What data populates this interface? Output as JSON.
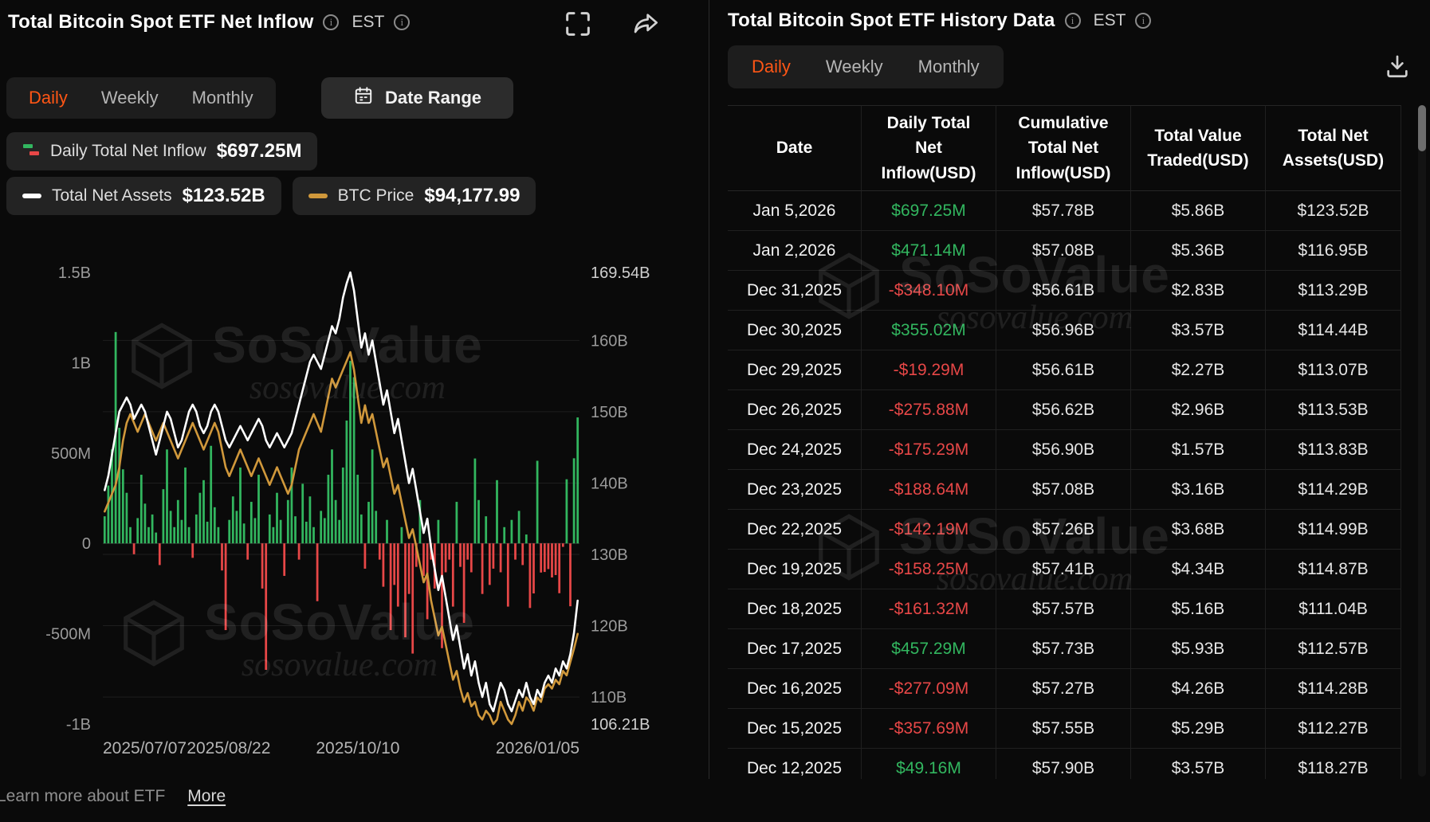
{
  "colors": {
    "accent_orange": "#ff5615",
    "green": "#32b65f",
    "red": "#e74747",
    "gold": "#d0983b",
    "white_line": "#ffffff"
  },
  "watermark": {
    "brand": "SoSoValue",
    "domain": "sosovalue.com"
  },
  "left_panel": {
    "title": "Total Bitcoin Spot ETF Net Inflow",
    "timezone": "EST",
    "tabs": [
      "Daily",
      "Weekly",
      "Monthly"
    ],
    "active_tab": "Daily",
    "date_range_label": "Date Range",
    "legend": [
      {
        "label": "Daily Total Net Inflow",
        "value": "$697.25M"
      },
      {
        "label": "Total Net Assets",
        "value": "$123.52B"
      },
      {
        "label": "BTC Price",
        "value": "$94,177.99"
      }
    ],
    "footer": {
      "learn_more": "Learn more about ETF",
      "more": "More"
    }
  },
  "right_panel": {
    "title": "Total Bitcoin Spot ETF History Data",
    "timezone": "EST",
    "tabs": [
      "Daily",
      "Weekly",
      "Monthly"
    ],
    "active_tab": "Daily",
    "table": {
      "columns": [
        "Date",
        "Daily Total Net Inflow(USD)",
        "Cumulative Total Net Inflow(USD)",
        "Total Value Traded(USD)",
        "Total Net Assets(USD)"
      ],
      "rows": [
        {
          "date": "Jan 5,2026",
          "daily_net_inflow": "$697.25M",
          "cumulative_net_inflow": "$57.78B",
          "value_traded": "$5.86B",
          "net_assets": "$123.52B"
        },
        {
          "date": "Jan 2,2026",
          "daily_net_inflow": "$471.14M",
          "cumulative_net_inflow": "$57.08B",
          "value_traded": "$5.36B",
          "net_assets": "$116.95B"
        },
        {
          "date": "Dec 31,2025",
          "daily_net_inflow": "-$348.10M",
          "cumulative_net_inflow": "$56.61B",
          "value_traded": "$2.83B",
          "net_assets": "$113.29B"
        },
        {
          "date": "Dec 30,2025",
          "daily_net_inflow": "$355.02M",
          "cumulative_net_inflow": "$56.96B",
          "value_traded": "$3.57B",
          "net_assets": "$114.44B"
        },
        {
          "date": "Dec 29,2025",
          "daily_net_inflow": "-$19.29M",
          "cumulative_net_inflow": "$56.61B",
          "value_traded": "$2.27B",
          "net_assets": "$113.07B"
        },
        {
          "date": "Dec 26,2025",
          "daily_net_inflow": "-$275.88M",
          "cumulative_net_inflow": "$56.62B",
          "value_traded": "$2.96B",
          "net_assets": "$113.53B"
        },
        {
          "date": "Dec 24,2025",
          "daily_net_inflow": "-$175.29M",
          "cumulative_net_inflow": "$56.90B",
          "value_traded": "$1.57B",
          "net_assets": "$113.83B"
        },
        {
          "date": "Dec 23,2025",
          "daily_net_inflow": "-$188.64M",
          "cumulative_net_inflow": "$57.08B",
          "value_traded": "$3.16B",
          "net_assets": "$114.29B"
        },
        {
          "date": "Dec 22,2025",
          "daily_net_inflow": "-$142.19M",
          "cumulative_net_inflow": "$57.26B",
          "value_traded": "$3.68B",
          "net_assets": "$114.99B"
        },
        {
          "date": "Dec 19,2025",
          "daily_net_inflow": "-$158.25M",
          "cumulative_net_inflow": "$57.41B",
          "value_traded": "$4.34B",
          "net_assets": "$114.87B"
        },
        {
          "date": "Dec 18,2025",
          "daily_net_inflow": "-$161.32M",
          "cumulative_net_inflow": "$57.57B",
          "value_traded": "$5.16B",
          "net_assets": "$111.04B"
        },
        {
          "date": "Dec 17,2025",
          "daily_net_inflow": "$457.29M",
          "cumulative_net_inflow": "$57.73B",
          "value_traded": "$5.93B",
          "net_assets": "$112.57B"
        },
        {
          "date": "Dec 16,2025",
          "daily_net_inflow": "-$277.09M",
          "cumulative_net_inflow": "$57.27B",
          "value_traded": "$4.26B",
          "net_assets": "$114.28B"
        },
        {
          "date": "Dec 15,2025",
          "daily_net_inflow": "-$357.69M",
          "cumulative_net_inflow": "$57.55B",
          "value_traded": "$5.29B",
          "net_assets": "$112.27B"
        },
        {
          "date": "Dec 12,2025",
          "daily_net_inflow": "$49.16M",
          "cumulative_net_inflow": "$57.90B",
          "value_traded": "$3.57B",
          "net_assets": "$118.27B"
        }
      ]
    }
  },
  "chart_data": {
    "type": "combo",
    "title": "Total Bitcoin Spot ETF Net Inflow",
    "x_start": "2025/07/07",
    "x_end": "2026/01/05",
    "x_ticks": [
      {
        "label": "2025/07/07",
        "pos": 0.0
      },
      {
        "label": "2025/08/22",
        "pos": 0.264
      },
      {
        "label": "2025/10/10",
        "pos": 0.535
      },
      {
        "label": "2026/01/05",
        "pos": 1.0
      }
    ],
    "left_axis": {
      "name": "Daily Net Inflow (USD)",
      "range_m": [
        -1000,
        1500
      ],
      "ticks": [
        {
          "label": "1.5B",
          "value": 1500
        },
        {
          "label": "1B",
          "value": 1000
        },
        {
          "label": "500M",
          "value": 500
        },
        {
          "label": "0",
          "value": 0
        },
        {
          "label": "-500M",
          "value": -500
        },
        {
          "label": "-1B",
          "value": -1000
        }
      ]
    },
    "right_axis": {
      "name": "Total Net Assets (USD)",
      "range_b": [
        106.21,
        169.54
      ],
      "ticks": [
        {
          "label": "169.54B",
          "value": 169.54
        },
        {
          "label": "160B",
          "value": 160
        },
        {
          "label": "150B",
          "value": 150
        },
        {
          "label": "140B",
          "value": 140
        },
        {
          "label": "130B",
          "value": 130
        },
        {
          "label": "120B",
          "value": 120
        },
        {
          "label": "110B",
          "value": 110
        },
        {
          "label": "106.21B",
          "value": 106.21
        }
      ]
    },
    "price_axis_range_k": [
      84,
      135
    ],
    "series": [
      {
        "name": "Daily Total Net Inflow",
        "type": "bar",
        "unit": "USD millions",
        "values": [
          150,
          320,
          520,
          1170,
          640,
          410,
          280,
          90,
          -60,
          140,
          380,
          220,
          90,
          160,
          60,
          -120,
          300,
          520,
          180,
          90,
          240,
          130,
          420,
          90,
          -80,
          160,
          280,
          350,
          120,
          540,
          200,
          90,
          -150,
          -480,
          130,
          260,
          180,
          420,
          110,
          -90,
          230,
          140,
          380,
          -250,
          -700,
          160,
          90,
          280,
          130,
          -180,
          240,
          420,
          150,
          -90,
          330,
          120,
          260,
          90,
          -320,
          180,
          140,
          380,
          520,
          240,
          130,
          420,
          680,
          1010,
          920,
          380,
          160,
          -140,
          230,
          520,
          180,
          -90,
          -240,
          130,
          -480,
          -230,
          -350,
          90,
          -520,
          -280,
          -610,
          -130,
          240,
          -180,
          -420,
          -90,
          -250,
          130,
          -580,
          -160,
          -90,
          -350,
          230,
          -130,
          -440,
          -90,
          -160,
          470,
          240,
          -280,
          150,
          -230,
          -140,
          350,
          -160,
          90,
          -350,
          130,
          -90,
          180,
          -120,
          49.16,
          -357.69,
          -277.09,
          457.29,
          -161.32,
          -158.25,
          -142.19,
          -188.64,
          -175.29,
          -275.88,
          -19.29,
          355.02,
          -348.1,
          471.14,
          697.25
        ]
      },
      {
        "name": "Total Net Assets",
        "type": "line",
        "unit": "USD billions",
        "values": [
          139,
          141,
          144,
          147,
          150,
          151,
          152,
          151,
          149,
          150,
          151,
          150,
          148,
          146,
          144,
          146,
          148,
          150,
          149,
          147,
          145,
          146,
          148,
          150,
          151,
          150,
          148,
          147,
          148,
          150,
          151,
          150,
          148,
          146,
          145,
          146,
          147,
          148,
          147,
          146,
          147,
          148,
          149,
          148,
          146,
          145,
          146,
          147,
          146,
          145,
          146,
          147,
          149,
          151,
          153,
          155,
          157,
          158,
          157,
          156,
          158,
          160,
          162,
          161,
          163,
          166,
          168,
          169.54,
          167,
          163,
          159,
          161,
          158,
          160,
          157,
          154,
          151,
          153,
          150,
          147,
          149,
          146,
          143,
          140,
          142,
          139,
          136,
          133,
          135,
          131,
          128,
          125,
          127,
          124,
          121,
          118,
          120,
          117,
          114,
          116,
          113,
          115,
          112,
          110,
          112,
          109,
          108,
          110,
          112,
          111,
          109,
          108,
          109.5,
          111,
          110,
          112,
          110,
          109,
          111,
          110,
          112,
          113,
          112,
          114,
          113,
          115,
          114,
          116,
          119,
          123.52
        ]
      },
      {
        "name": "BTC Price",
        "type": "line",
        "unit": "USD thousands",
        "values": [
          108,
          109,
          110,
          111,
          113,
          116,
          118,
          119,
          118,
          117,
          118,
          119,
          118,
          117,
          116,
          117,
          118,
          117,
          116,
          115,
          114,
          115,
          116,
          117,
          118,
          117,
          116,
          115,
          116,
          117,
          118,
          117,
          115,
          113,
          112,
          113,
          114,
          115,
          114,
          113,
          112,
          113,
          114,
          113,
          112,
          111,
          112,
          113,
          112,
          111,
          110,
          111,
          113,
          115,
          116,
          117,
          118,
          119,
          118,
          117,
          119,
          121,
          123,
          122,
          123,
          124,
          125,
          126,
          124,
          121,
          118,
          120,
          118,
          119,
          117,
          115,
          113,
          114,
          112,
          110,
          111,
          109,
          107,
          105,
          106,
          104,
          102,
          100,
          101,
          98,
          96,
          94,
          95,
          93,
          91,
          89,
          90,
          88,
          86.5,
          87.5,
          86,
          86.5,
          85,
          84.5,
          85.5,
          85,
          84,
          84.5,
          86.5,
          85.5,
          84.5,
          84,
          85,
          86.5,
          85.5,
          87,
          86.5,
          85.5,
          87,
          86.5,
          88,
          88.5,
          88,
          89,
          88.5,
          90,
          89.5,
          91,
          92.5,
          94.18
        ]
      }
    ],
    "grid": true,
    "legend_position": "top-left"
  }
}
